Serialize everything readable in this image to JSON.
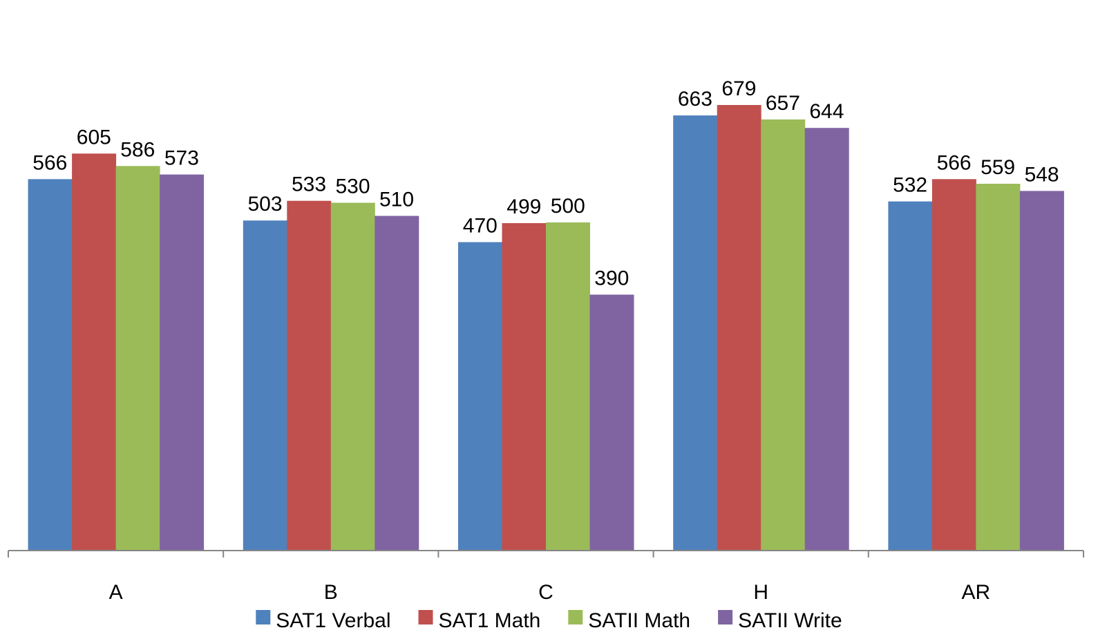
{
  "chart_data": {
    "type": "bar",
    "categories": [
      "A",
      "B",
      "C",
      "H",
      "AR"
    ],
    "series": [
      {
        "name": "SAT1 Verbal",
        "color": "#4F81BD",
        "values": [
          566,
          503,
          470,
          663,
          532
        ]
      },
      {
        "name": "SAT1 Math",
        "color": "#C0504D",
        "values": [
          605,
          533,
          499,
          679,
          566
        ]
      },
      {
        "name": "SATII Math",
        "color": "#9BBB59",
        "values": [
          586,
          530,
          500,
          657,
          559
        ]
      },
      {
        "name": "SATII Write",
        "color": "#8064A2",
        "values": [
          573,
          510,
          390,
          644,
          548
        ]
      }
    ],
    "ylim": [
      0,
      730
    ],
    "grid": false,
    "legend_position": "bottom",
    "data_labels": true
  }
}
